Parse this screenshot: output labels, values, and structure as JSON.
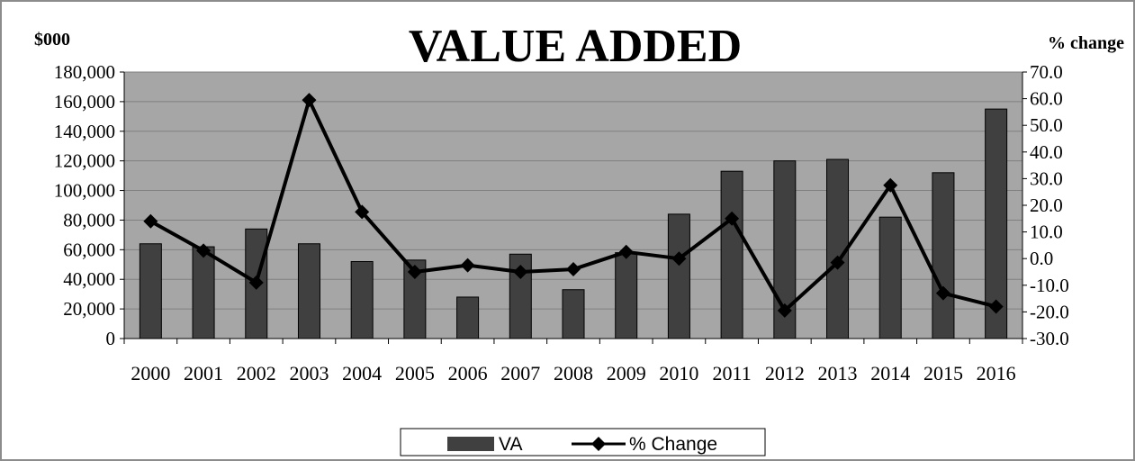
{
  "chart_data": {
    "type": "bar",
    "title": "VALUE ADDED",
    "ylabel_left": "$000",
    "ylabel_right": "% change",
    "categories": [
      "2000",
      "2001",
      "2002",
      "2003",
      "2004",
      "2005",
      "2006",
      "2007",
      "2008",
      "2009",
      "2010",
      "2011",
      "2012",
      "2013",
      "2014",
      "2015",
      "2016"
    ],
    "ylim_left": [
      0,
      180000
    ],
    "yticks_left": [
      "0",
      "20,000",
      "40,000",
      "60,000",
      "80,000",
      "100,000",
      "120,000",
      "140,000",
      "160,000",
      "180,000"
    ],
    "ylim_right": [
      -30,
      70
    ],
    "yticks_right": [
      "-30.0",
      "-20.0",
      "-10.0",
      "0.0",
      "10.0",
      "20.0",
      "30.0",
      "40.0",
      "50.0",
      "60.0",
      "70.0"
    ],
    "grid": true,
    "legend_position": "bottom",
    "series": [
      {
        "name": "VA",
        "type": "bar",
        "axis": "left",
        "color": "#404040",
        "values": [
          64000,
          62000,
          74000,
          64000,
          52000,
          53000,
          28000,
          57000,
          33000,
          58000,
          84000,
          113000,
          120000,
          121000,
          82000,
          112000,
          155000
        ]
      },
      {
        "name": "% Change",
        "type": "line",
        "axis": "right",
        "color": "#000000",
        "marker": "diamond",
        "values": [
          14.0,
          3.0,
          -9.0,
          59.5,
          17.5,
          -5.0,
          -2.5,
          -5.0,
          -4.0,
          2.5,
          0.0,
          15.0,
          -19.5,
          -1.5,
          27.5,
          -13.0,
          -18.0
        ]
      }
    ]
  }
}
